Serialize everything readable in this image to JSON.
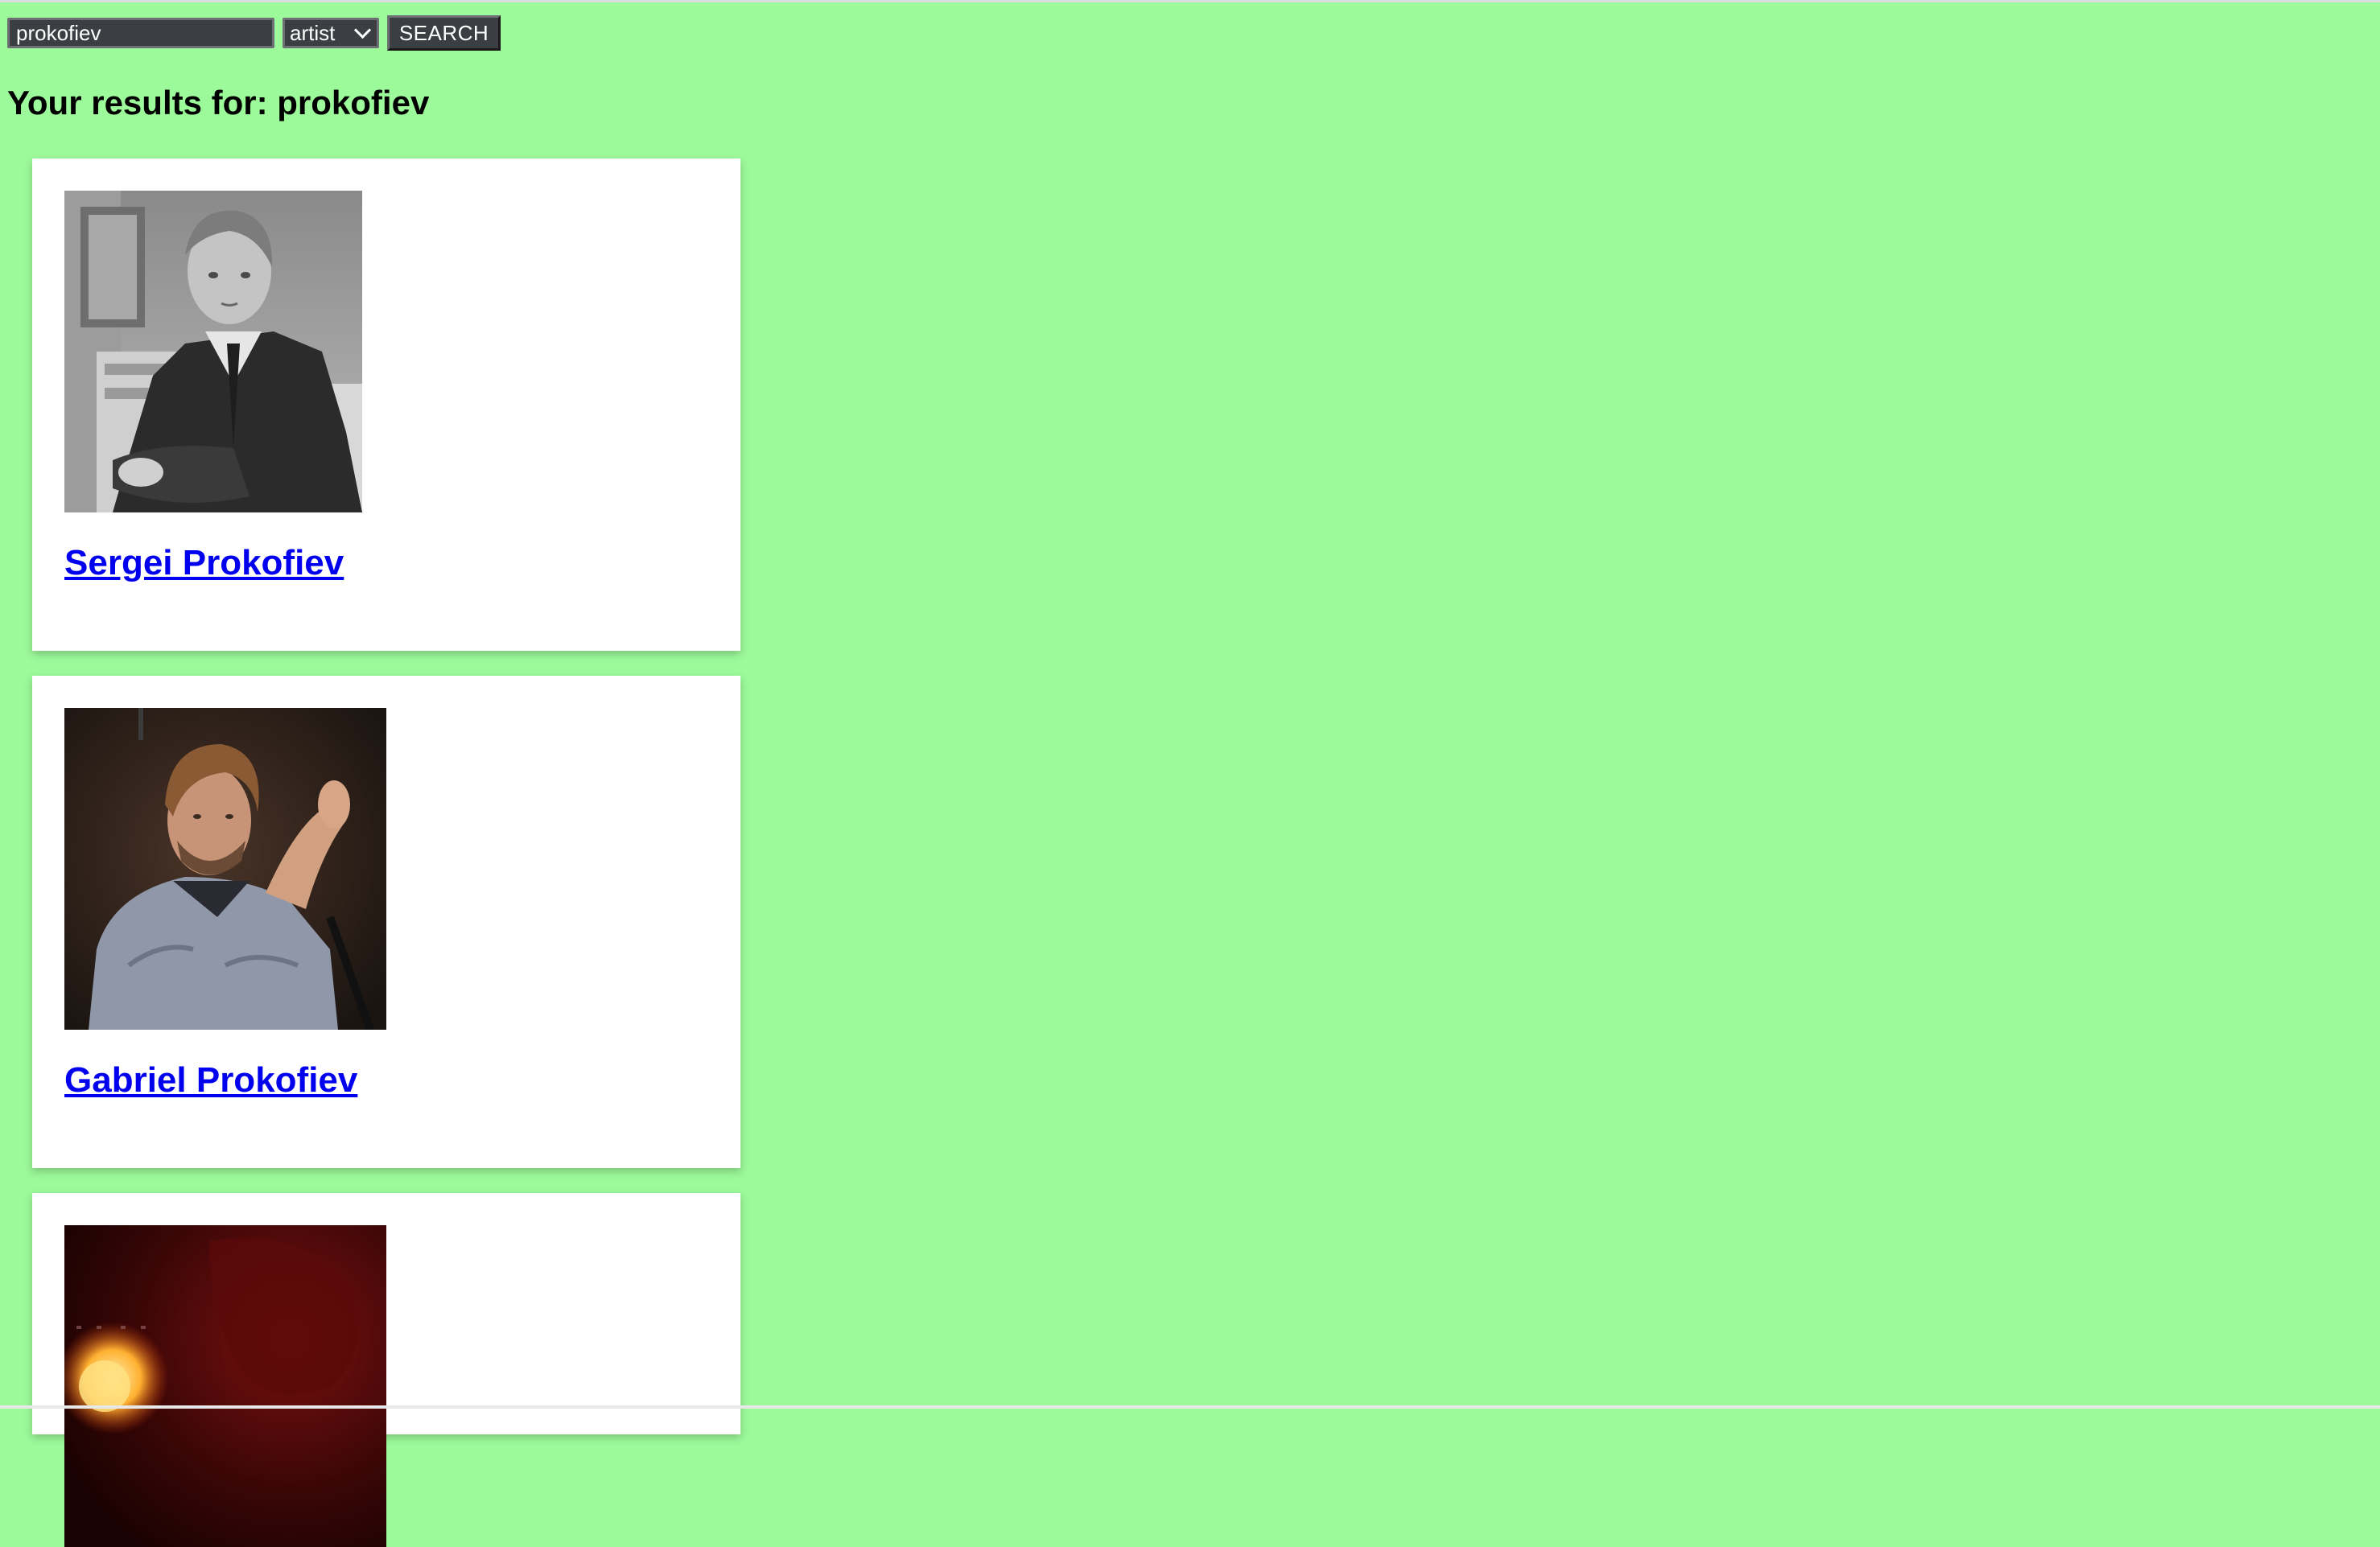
{
  "search": {
    "query_value": "prokofiev",
    "type_selected": "artist",
    "button_label": "SEARCH"
  },
  "results": {
    "heading": "Your results for: prokofiev",
    "items": [
      {
        "name": "Sergei Prokofiev",
        "photo_icon": "portrait-bw-photo"
      },
      {
        "name": "Gabriel Prokofiev",
        "photo_icon": "portrait-color-photo"
      },
      {
        "name": "",
        "photo_icon": "album-art-dark-red"
      }
    ]
  },
  "colors": {
    "background": "#9cfa9a",
    "card": "#ffffff",
    "link": "#0000ee",
    "control": "#3b3f44"
  }
}
